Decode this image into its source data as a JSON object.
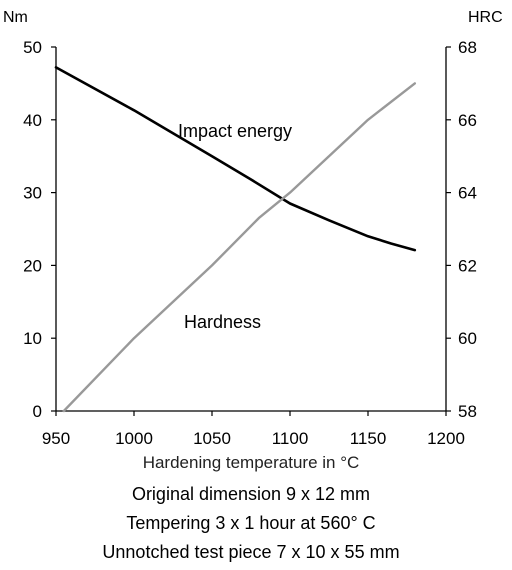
{
  "chart_data": {
    "type": "line",
    "xlabel": "Hardening temperature in °C",
    "ylabel_left": "Nm",
    "ylabel_right": "HRC",
    "xlim": [
      950,
      1200
    ],
    "ylim_left": [
      0,
      50
    ],
    "ylim_right": [
      58,
      68
    ],
    "x_ticks": [
      "950",
      "1000",
      "1050",
      "1100",
      "1150",
      "1200"
    ],
    "y_ticks_left": [
      "0",
      "10",
      "20",
      "30",
      "40",
      "50"
    ],
    "y_ticks_right": [
      "58",
      "60",
      "62",
      "64",
      "66",
      "68"
    ],
    "grid": false,
    "series": [
      {
        "name": "Impact energy",
        "axis": "left",
        "color": "#000000",
        "x": [
          950,
          1000,
          1050,
          1075,
          1100,
          1125,
          1150,
          1165,
          1180
        ],
        "values": [
          47.2,
          41.3,
          35.0,
          31.8,
          28.5,
          26.2,
          24.0,
          23.0,
          22.1
        ]
      },
      {
        "name": "Hardness",
        "axis": "right",
        "color": "#999999",
        "x": [
          955,
          1000,
          1050,
          1080,
          1100,
          1150,
          1180
        ],
        "values": [
          58.0,
          60.0,
          62.0,
          63.3,
          64.0,
          66.0,
          67.0
        ]
      }
    ]
  },
  "captions": [
    "Original dimension 9 x 12 mm",
    "Tempering 3 x 1 hour at 560° C",
    "Unnotched test piece 7 x 10 x 55 mm"
  ]
}
